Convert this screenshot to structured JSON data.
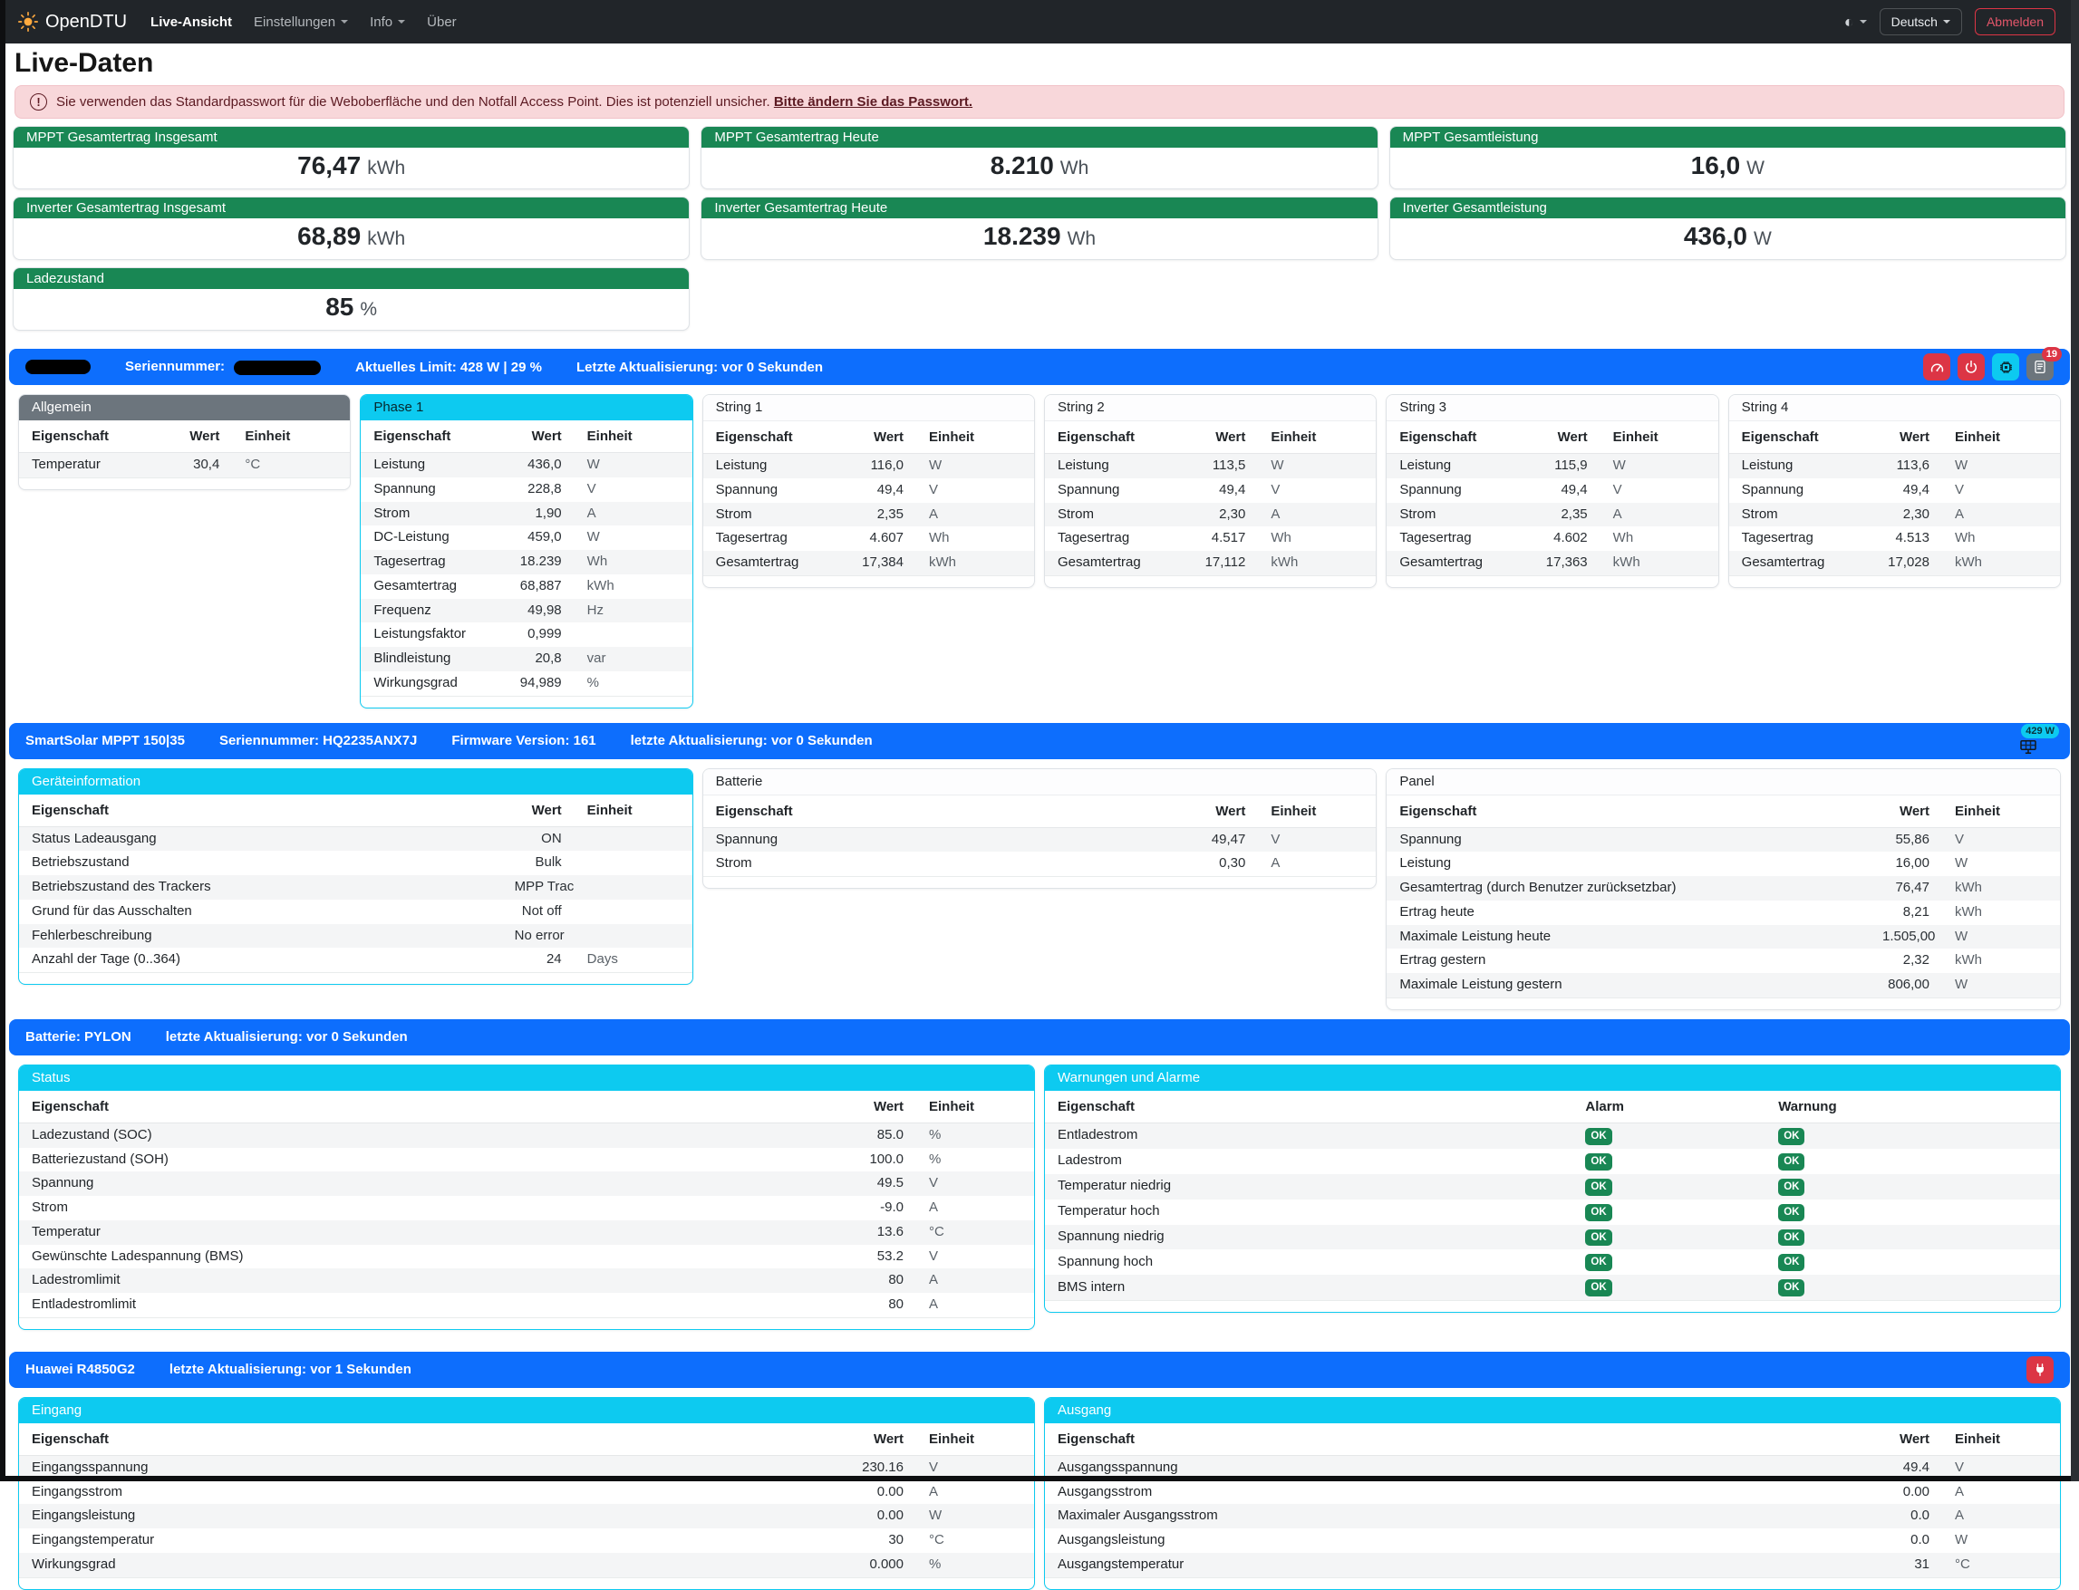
{
  "colors": {
    "primary_blue": "#0d6efd",
    "success_green": "#198754",
    "info_cyan": "#0dcaf0",
    "danger_red": "#dc3545",
    "secondary_gray": "#6c757d",
    "navbar_dark": "#212529",
    "alert_pink": "#f8d7da"
  },
  "navbar": {
    "brand": "OpenDTU",
    "nav_items": [
      {
        "label": "Live-Ansicht"
      },
      {
        "label": "Einstellungen"
      },
      {
        "label": "Info"
      },
      {
        "label": "Über"
      }
    ],
    "language": "Deutsch",
    "logout": "Abmelden"
  },
  "page_title": "Live-Daten",
  "alert": {
    "text": "Sie verwenden das Standardpasswort für die Weboberfläche und den Notfall Access Point. Dies ist potenziell unsicher.",
    "link": "Bitte ändern Sie das Passwort."
  },
  "summary_cards": [
    {
      "label": "MPPT Gesamtertrag Insgesamt",
      "value": "76,47",
      "unit": "kWh"
    },
    {
      "label": "MPPT Gesamtertrag Heute",
      "value": "8.210",
      "unit": "Wh"
    },
    {
      "label": "MPPT Gesamtleistung",
      "value": "16,0",
      "unit": "W"
    },
    {
      "label": "Inverter Gesamtertrag Insgesamt",
      "value": "68,89",
      "unit": "kWh"
    },
    {
      "label": "Inverter Gesamtertrag Heute",
      "value": "18.239",
      "unit": "Wh"
    },
    {
      "label": "Inverter Gesamtleistung",
      "value": "436,0",
      "unit": "W"
    },
    {
      "label": "Ladezustand",
      "value": "85",
      "unit": "%"
    }
  ],
  "table_headers": {
    "property": "Eigenschaft",
    "value": "Wert",
    "unit": "Einheit"
  },
  "inverter": {
    "serial_label": "Seriennummer:",
    "limit": "Aktuelles Limit: 428 W | 29 %",
    "updated": "Letzte Aktualisierung: vor 0 Sekunden",
    "journal_badge": "19",
    "cards": {
      "allgemein": {
        "title": "Allgemein",
        "rows": [
          [
            "Temperatur",
            "30,4",
            "°C"
          ]
        ]
      },
      "phase1": {
        "title": "Phase 1",
        "rows": [
          [
            "Leistung",
            "436,0",
            "W"
          ],
          [
            "Spannung",
            "228,8",
            "V"
          ],
          [
            "Strom",
            "1,90",
            "A"
          ],
          [
            "DC-Leistung",
            "459,0",
            "W"
          ],
          [
            "Tagesertrag",
            "18.239",
            "Wh"
          ],
          [
            "Gesamtertrag",
            "68,887",
            "kWh"
          ],
          [
            "Frequenz",
            "49,98",
            "Hz"
          ],
          [
            "Leistungsfaktor",
            "0,999",
            ""
          ],
          [
            "Blindleistung",
            "20,8",
            "var"
          ],
          [
            "Wirkungsgrad",
            "94,989",
            "%"
          ]
        ]
      },
      "string1": {
        "title": "String 1",
        "rows": [
          [
            "Leistung",
            "116,0",
            "W"
          ],
          [
            "Spannung",
            "49,4",
            "V"
          ],
          [
            "Strom",
            "2,35",
            "A"
          ],
          [
            "Tagesertrag",
            "4.607",
            "Wh"
          ],
          [
            "Gesamtertrag",
            "17,384",
            "kWh"
          ]
        ]
      },
      "string2": {
        "title": "String 2",
        "rows": [
          [
            "Leistung",
            "113,5",
            "W"
          ],
          [
            "Spannung",
            "49,4",
            "V"
          ],
          [
            "Strom",
            "2,30",
            "A"
          ],
          [
            "Tagesertrag",
            "4.517",
            "Wh"
          ],
          [
            "Gesamtertrag",
            "17,112",
            "kWh"
          ]
        ]
      },
      "string3": {
        "title": "String 3",
        "rows": [
          [
            "Leistung",
            "115,9",
            "W"
          ],
          [
            "Spannung",
            "49,4",
            "V"
          ],
          [
            "Strom",
            "2,35",
            "A"
          ],
          [
            "Tagesertrag",
            "4.602",
            "Wh"
          ],
          [
            "Gesamtertrag",
            "17,363",
            "kWh"
          ]
        ]
      },
      "string4": {
        "title": "String 4",
        "rows": [
          [
            "Leistung",
            "113,6",
            "W"
          ],
          [
            "Spannung",
            "49,4",
            "V"
          ],
          [
            "Strom",
            "2,30",
            "A"
          ],
          [
            "Tagesertrag",
            "4.513",
            "Wh"
          ],
          [
            "Gesamtertrag",
            "17,028",
            "kWh"
          ]
        ]
      }
    }
  },
  "victron": {
    "title": "SmartSolar MPPT 150|35",
    "serial": "Seriennummer: HQ2235ANX7J",
    "firmware": "Firmware Version: 161",
    "updated": "letzte Aktualisierung: vor 0 Sekunden",
    "power_badge": "429 W",
    "cards": {
      "device": {
        "title": "Geräteinformation",
        "rows": [
          [
            "Status Ladeausgang",
            "ON",
            ""
          ],
          [
            "Betriebszustand",
            "Bulk",
            ""
          ],
          [
            "Betriebszustand des Trackers",
            "MPP Tracker active",
            ""
          ],
          [
            "Grund für das Ausschalten",
            "Not off",
            ""
          ],
          [
            "Fehlerbeschreibung",
            "No error",
            ""
          ],
          [
            "Anzahl der Tage (0..364)",
            "24",
            "Days"
          ]
        ]
      },
      "battery": {
        "title": "Batterie",
        "rows": [
          [
            "Spannung",
            "49,47",
            "V"
          ],
          [
            "Strom",
            "0,30",
            "A"
          ]
        ]
      },
      "panel": {
        "title": "Panel",
        "rows": [
          [
            "Spannung",
            "55,86",
            "V"
          ],
          [
            "Leistung",
            "16,00",
            "W"
          ],
          [
            "Gesamtertrag (durch Benutzer zurücksetzbar)",
            "76,47",
            "kWh"
          ],
          [
            "Ertrag heute",
            "8,21",
            "kWh"
          ],
          [
            "Maximale Leistung heute",
            "1.505,00",
            "W"
          ],
          [
            "Ertrag gestern",
            "2,32",
            "kWh"
          ],
          [
            "Maximale Leistung gestern",
            "806,00",
            "W"
          ]
        ]
      }
    }
  },
  "pylon": {
    "title": "Batterie: PYLON",
    "updated": "letzte Aktualisierung: vor 0 Sekunden",
    "status": {
      "title": "Status",
      "rows": [
        [
          "Ladezustand (SOC)",
          "85.0",
          "%"
        ],
        [
          "Batteriezustand (SOH)",
          "100.0",
          "%"
        ],
        [
          "Spannung",
          "49.5",
          "V"
        ],
        [
          "Strom",
          "-9.0",
          "A"
        ],
        [
          "Temperatur",
          "13.6",
          "°C"
        ],
        [
          "Gewünschte Ladespannung (BMS)",
          "53.2",
          "V"
        ],
        [
          "Ladestromlimit",
          "80",
          "A"
        ],
        [
          "Entladestromlimit",
          "80",
          "A"
        ]
      ]
    },
    "alarms": {
      "title": "Warnungen und Alarme",
      "headers": {
        "property": "Eigenschaft",
        "alarm": "Alarm",
        "warning": "Warnung"
      },
      "ok_label": "OK",
      "rows": [
        "Entladestrom",
        "Ladestrom",
        "Temperatur niedrig",
        "Temperatur hoch",
        "Spannung niedrig",
        "Spannung hoch",
        "BMS intern"
      ]
    }
  },
  "huawei": {
    "title": "Huawei R4850G2",
    "updated": "letzte Aktualisierung: vor 1 Sekunden",
    "input": {
      "title": "Eingang",
      "rows": [
        [
          "Eingangsspannung",
          "230.16",
          "V"
        ],
        [
          "Eingangsstrom",
          "0.00",
          "A"
        ],
        [
          "Eingangsleistung",
          "0.00",
          "W"
        ],
        [
          "Eingangstemperatur",
          "30",
          "°C"
        ],
        [
          "Wirkungsgrad",
          "0.000",
          "%"
        ]
      ]
    },
    "output": {
      "title": "Ausgang",
      "rows": [
        [
          "Ausgangsspannung",
          "49.4",
          "V"
        ],
        [
          "Ausgangsstrom",
          "0.00",
          "A"
        ],
        [
          "Maximaler Ausgangsstrom",
          "0.0",
          "A"
        ],
        [
          "Ausgangsleistung",
          "0.0",
          "W"
        ],
        [
          "Ausgangstemperatur",
          "31",
          "°C"
        ]
      ]
    }
  }
}
